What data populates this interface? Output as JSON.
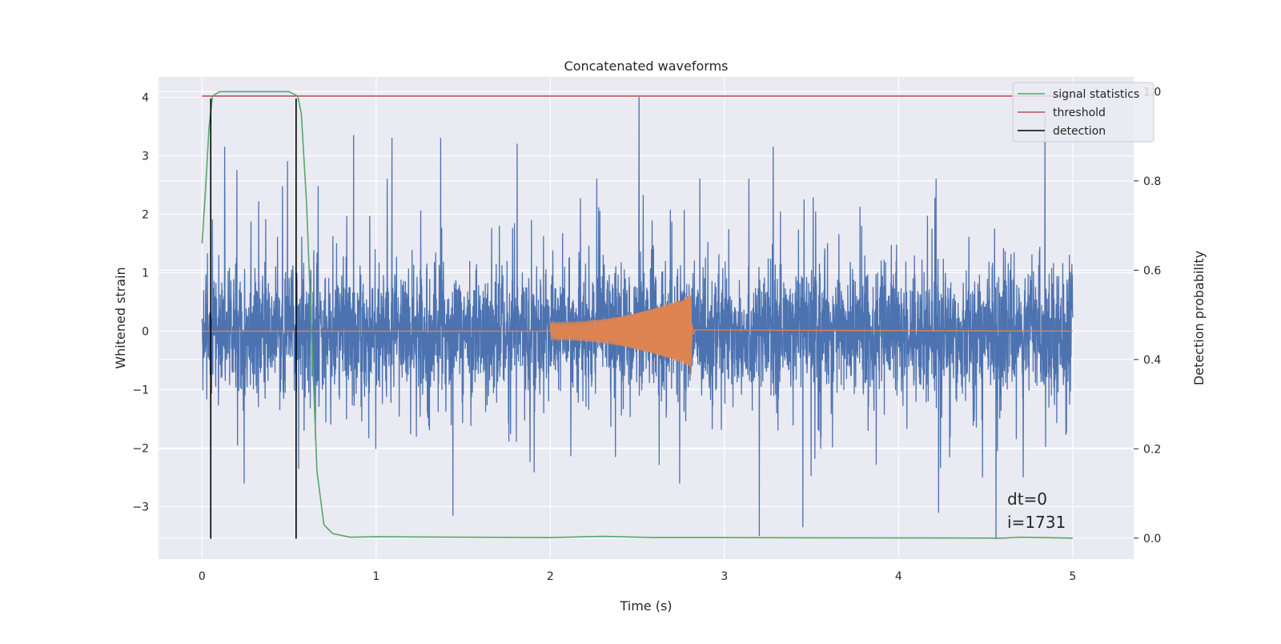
{
  "chart_data": {
    "type": "line",
    "title": "Concatenated waveforms",
    "xlabel": "Time (s)",
    "ylabel": "Whitened strain",
    "ylabel_right": "Detection probability",
    "xlim": [
      -0.25,
      5.35
    ],
    "ylim": [
      -3.9,
      4.35
    ],
    "ylim_right": [
      -0.047,
      1.033
    ],
    "x_ticks": [
      0,
      1,
      2,
      3,
      4,
      5
    ],
    "y_ticks": [
      -3,
      -2,
      -1,
      0,
      1,
      2,
      3,
      4
    ],
    "y_ticks_right": [
      0.0,
      0.2,
      0.4,
      0.6,
      0.8,
      1.0
    ],
    "x_tick_labels": [
      "0",
      "1",
      "2",
      "3",
      "4",
      "5"
    ],
    "y_tick_labels": [
      "−3",
      "−2",
      "−1",
      "0",
      "1",
      "2",
      "3",
      "4"
    ],
    "y_tick_labels_right": [
      "0.0",
      "0.2",
      "0.4",
      "0.6",
      "0.8",
      "1.0"
    ],
    "grid": true,
    "legend_position": "top-right",
    "series": [
      {
        "name": "",
        "axis": "left",
        "color": "#4c72b0",
        "kind": "noise",
        "x_range": [
          0,
          5
        ],
        "typical_range": [
          -1.6,
          1.5
        ],
        "peak_spikes": [
          {
            "x": 0.13,
            "y": 3.15
          },
          {
            "x": 0.2,
            "y": 2.75
          },
          {
            "x": 0.49,
            "y": 2.9
          },
          {
            "x": 0.87,
            "y": 3.35
          },
          {
            "x": 1.09,
            "y": 3.3
          },
          {
            "x": 1.37,
            "y": 3.3
          },
          {
            "x": 1.81,
            "y": 3.2
          },
          {
            "x": 2.51,
            "y": 4.0
          },
          {
            "x": 3.28,
            "y": 3.15
          },
          {
            "x": 4.84,
            "y": 3.75
          },
          {
            "x": 0.05,
            "y": -2.75
          },
          {
            "x": 1.44,
            "y": -3.15
          },
          {
            "x": 3.2,
            "y": -3.5
          },
          {
            "x": 3.45,
            "y": -3.35
          },
          {
            "x": 4.23,
            "y": -3.1
          },
          {
            "x": 4.56,
            "y": -3.55
          }
        ]
      },
      {
        "name": "",
        "axis": "left",
        "color": "#dd8452",
        "kind": "chirp",
        "x_range": [
          0,
          5
        ],
        "chirp_start": 2.0,
        "chirp_end": 2.81,
        "amplitude_start": 0.15,
        "peak_amplitude": 0.62,
        "min_value": -0.75
      },
      {
        "name": "signal statistics",
        "axis": "right",
        "color": "#55a868",
        "points": [
          [
            0.0,
            0.66
          ],
          [
            0.02,
            0.78
          ],
          [
            0.04,
            0.92
          ],
          [
            0.06,
            0.99
          ],
          [
            0.1,
            1.0
          ],
          [
            0.5,
            1.0
          ],
          [
            0.55,
            0.99
          ],
          [
            0.57,
            0.95
          ],
          [
            0.6,
            0.75
          ],
          [
            0.63,
            0.45
          ],
          [
            0.66,
            0.15
          ],
          [
            0.7,
            0.03
          ],
          [
            0.75,
            0.01
          ],
          [
            0.85,
            0.002
          ],
          [
            1.0,
            0.003
          ],
          [
            2.0,
            0.001
          ],
          [
            2.3,
            0.004
          ],
          [
            2.6,
            0.001
          ],
          [
            3.0,
            0.001
          ],
          [
            4.6,
            0.0
          ],
          [
            4.7,
            0.002
          ],
          [
            5.0,
            0.0
          ]
        ]
      },
      {
        "name": "threshold",
        "axis": "right",
        "color": "#c44e52",
        "value": 0.99
      },
      {
        "name": "detection",
        "axis": "left",
        "color": "#000000",
        "x": [
          0.05,
          0.54
        ],
        "y_range": [
          -3.55,
          3.98
        ]
      }
    ],
    "annotations": [
      "dt=0",
      "i=1731"
    ]
  }
}
